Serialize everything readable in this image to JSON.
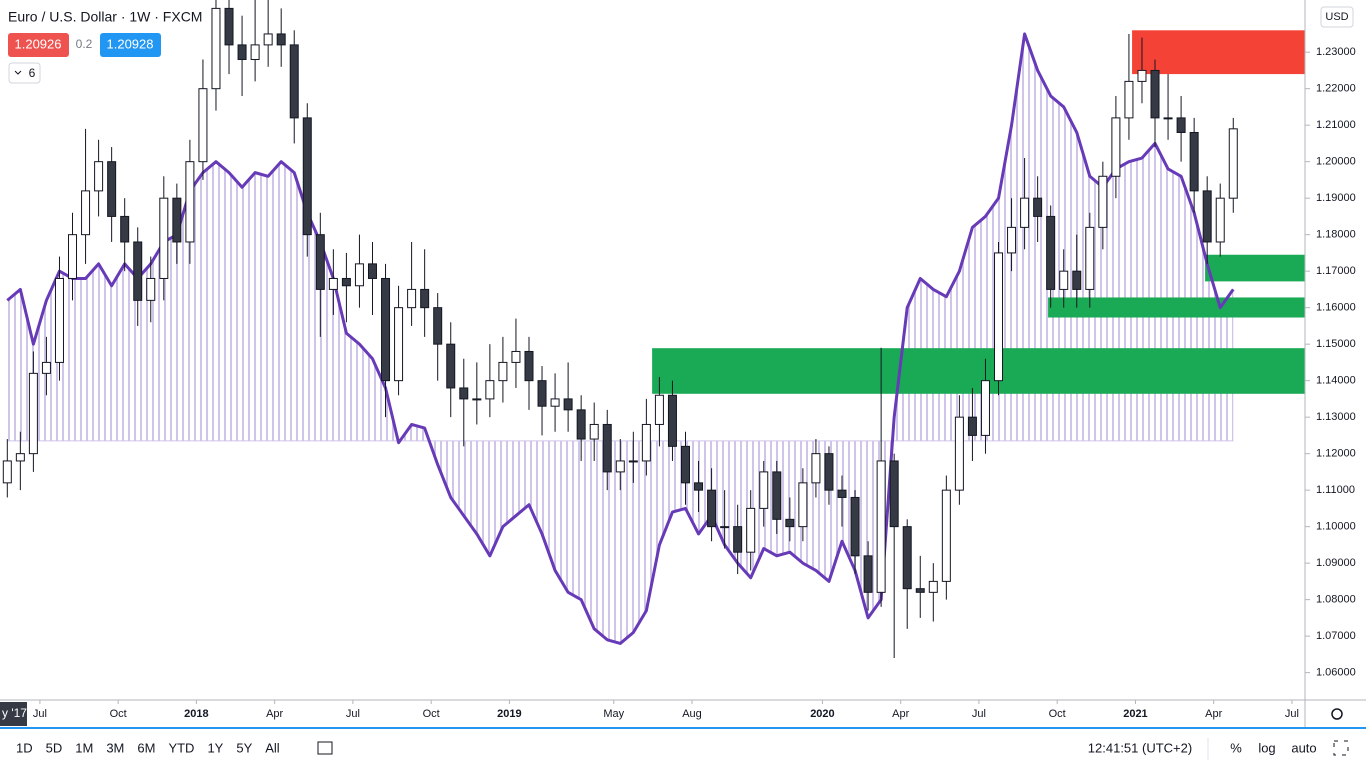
{
  "header": {
    "symbol": "Euro / U.S. Dollar · 1W · FXCM",
    "bid": "1.20926",
    "spread": "0.2",
    "ask": "1.20928",
    "indicator_count": "6"
  },
  "currency": "USD",
  "toolbar": {
    "ranges": [
      "1D",
      "5D",
      "1M",
      "3M",
      "6M",
      "YTD",
      "1Y",
      "5Y",
      "All"
    ],
    "clock": "12:41:51 (UTC+2)",
    "percent": "%",
    "log": "log",
    "auto": "auto"
  },
  "crosshair_label": "y '17",
  "chart_data": {
    "type": "candlestick",
    "xlim": [
      -1.53,
      48.5
    ],
    "xticks": [
      {
        "value": 0,
        "label": "Jul"
      },
      {
        "value": 3,
        "label": "Oct"
      },
      {
        "value": 6,
        "label": "2018"
      },
      {
        "value": 9,
        "label": "Apr"
      },
      {
        "value": 12,
        "label": "Jul"
      },
      {
        "value": 15,
        "label": "Oct"
      },
      {
        "value": 18,
        "label": "2019"
      },
      {
        "value": 22,
        "label": "May"
      },
      {
        "value": 25,
        "label": "Aug"
      },
      {
        "value": 30,
        "label": "2020"
      },
      {
        "value": 33,
        "label": "Apr"
      },
      {
        "value": 36,
        "label": "Jul"
      },
      {
        "value": 39,
        "label": "Oct"
      },
      {
        "value": 42,
        "label": "2021"
      },
      {
        "value": 45,
        "label": "Apr"
      },
      {
        "value": 48,
        "label": "Jul"
      }
    ],
    "ylim": [
      1.0525,
      1.2443
    ],
    "yticks": [
      {
        "value": 1.06,
        "label": "1.06000"
      },
      {
        "value": 1.07,
        "label": "1.07000"
      },
      {
        "value": 1.08,
        "label": "1.08000"
      },
      {
        "value": 1.09,
        "label": "1.09000"
      },
      {
        "value": 1.1,
        "label": "1.10000"
      },
      {
        "value": 1.11,
        "label": "1.11000"
      },
      {
        "value": 1.12,
        "label": "1.12000"
      },
      {
        "value": 1.13,
        "label": "1.13000"
      },
      {
        "value": 1.14,
        "label": "1.14000"
      },
      {
        "value": 1.15,
        "label": "1.15000"
      },
      {
        "value": 1.16,
        "label": "1.16000"
      },
      {
        "value": 1.17,
        "label": "1.17000"
      },
      {
        "value": 1.18,
        "label": "1.18000"
      },
      {
        "value": 1.19,
        "label": "1.19000"
      },
      {
        "value": 1.2,
        "label": "1.20000"
      },
      {
        "value": 1.21,
        "label": "1.21000"
      },
      {
        "value": 1.22,
        "label": "1.22000"
      },
      {
        "value": 1.23,
        "label": "1.23000"
      }
    ],
    "x": [
      -1.25,
      -0.75,
      -0.25,
      0.25,
      0.75,
      1.25,
      1.75,
      2.25,
      2.75,
      3.25,
      3.75,
      4.25,
      4.75,
      5.25,
      5.75,
      6.25,
      6.75,
      7.25,
      7.75,
      8.25,
      8.75,
      9.25,
      9.75,
      10.25,
      10.75,
      11.25,
      11.75,
      12.25,
      12.75,
      13.25,
      13.75,
      14.25,
      14.75,
      15.25,
      15.75,
      16.25,
      16.75,
      17.25,
      17.75,
      18.25,
      18.75,
      19.25,
      19.75,
      20.25,
      20.75,
      21.25,
      21.75,
      22.25,
      22.75,
      23.25,
      23.75,
      24.25,
      24.75,
      25.25,
      25.75,
      26.25,
      26.75,
      27.25,
      27.75,
      28.25,
      28.75,
      29.25,
      29.75,
      30.25,
      30.75,
      31.25,
      31.75,
      32.25,
      32.75,
      33.25,
      33.75,
      34.25,
      34.75,
      35.25,
      35.75,
      36.25,
      36.75,
      37.25,
      37.75,
      38.25,
      38.75,
      39.25,
      39.75,
      40.25,
      40.75,
      41.25,
      41.75,
      42.25,
      42.75,
      43.25,
      43.75,
      44.25,
      44.75,
      45.25,
      45.75
    ],
    "open": [
      1.112,
      1.118,
      1.12,
      1.142,
      1.145,
      1.168,
      1.18,
      1.192,
      1.2,
      1.185,
      1.178,
      1.162,
      1.168,
      1.19,
      1.178,
      1.2,
      1.22,
      1.242,
      1.232,
      1.228,
      1.232,
      1.235,
      1.232,
      1.212,
      1.18,
      1.165,
      1.168,
      1.166,
      1.172,
      1.168,
      1.14,
      1.16,
      1.165,
      1.16,
      1.15,
      1.138,
      1.135,
      1.135,
      1.14,
      1.145,
      1.148,
      1.14,
      1.133,
      1.135,
      1.132,
      1.124,
      1.128,
      1.115,
      1.118,
      1.118,
      1.128,
      1.136,
      1.122,
      1.112,
      1.11,
      1.1,
      1.1,
      1.093,
      1.105,
      1.115,
      1.102,
      1.1,
      1.112,
      1.12,
      1.11,
      1.108,
      1.092,
      1.082,
      1.118,
      1.1,
      1.083,
      1.082,
      1.085,
      1.11,
      1.13,
      1.125,
      1.14,
      1.175,
      1.182,
      1.19,
      1.185,
      1.165,
      1.17,
      1.165,
      1.182,
      1.196,
      1.212,
      1.222,
      1.225,
      1.212,
      1.212,
      1.208,
      1.192,
      1.178,
      1.19
    ],
    "high": [
      1.124,
      1.126,
      1.148,
      1.152,
      1.174,
      1.186,
      1.209,
      1.206,
      1.204,
      1.19,
      1.182,
      1.174,
      1.196,
      1.194,
      1.206,
      1.228,
      1.255,
      1.25,
      1.24,
      1.245,
      1.248,
      1.242,
      1.236,
      1.216,
      1.186,
      1.176,
      1.175,
      1.18,
      1.178,
      1.172,
      1.166,
      1.178,
      1.176,
      1.164,
      1.156,
      1.146,
      1.145,
      1.15,
      1.152,
      1.157,
      1.152,
      1.144,
      1.142,
      1.145,
      1.136,
      1.134,
      1.132,
      1.124,
      1.126,
      1.135,
      1.141,
      1.14,
      1.126,
      1.118,
      1.116,
      1.11,
      1.106,
      1.11,
      1.118,
      1.118,
      1.108,
      1.116,
      1.124,
      1.122,
      1.114,
      1.11,
      1.096,
      1.149,
      1.12,
      1.102,
      1.092,
      1.09,
      1.114,
      1.136,
      1.138,
      1.146,
      1.178,
      1.19,
      1.201,
      1.196,
      1.188,
      1.176,
      1.18,
      1.186,
      1.2,
      1.218,
      1.235,
      1.234,
      1.228,
      1.224,
      1.218,
      1.212,
      1.196,
      1.194,
      1.212
    ],
    "low": [
      1.108,
      1.11,
      1.115,
      1.136,
      1.14,
      1.162,
      1.172,
      1.185,
      1.178,
      1.17,
      1.155,
      1.156,
      1.162,
      1.172,
      1.172,
      1.195,
      1.214,
      1.224,
      1.218,
      1.222,
      1.226,
      1.226,
      1.205,
      1.174,
      1.152,
      1.158,
      1.156,
      1.16,
      1.158,
      1.13,
      1.136,
      1.155,
      1.152,
      1.14,
      1.13,
      1.122,
      1.128,
      1.13,
      1.134,
      1.138,
      1.132,
      1.125,
      1.126,
      1.126,
      1.118,
      1.118,
      1.11,
      1.11,
      1.112,
      1.114,
      1.122,
      1.118,
      1.106,
      1.104,
      1.096,
      1.094,
      1.087,
      1.088,
      1.1,
      1.098,
      1.096,
      1.096,
      1.108,
      1.106,
      1.1,
      1.087,
      1.077,
      1.078,
      1.064,
      1.072,
      1.075,
      1.074,
      1.08,
      1.106,
      1.118,
      1.12,
      1.136,
      1.17,
      1.176,
      1.178,
      1.16,
      1.16,
      1.16,
      1.16,
      1.176,
      1.19,
      1.206,
      1.216,
      1.204,
      1.206,
      1.2,
      1.186,
      1.172,
      1.174,
      1.186
    ],
    "close": [
      1.118,
      1.12,
      1.142,
      1.145,
      1.168,
      1.18,
      1.192,
      1.2,
      1.185,
      1.178,
      1.162,
      1.168,
      1.19,
      1.178,
      1.2,
      1.22,
      1.242,
      1.232,
      1.228,
      1.232,
      1.235,
      1.232,
      1.212,
      1.18,
      1.165,
      1.168,
      1.166,
      1.172,
      1.168,
      1.14,
      1.16,
      1.165,
      1.16,
      1.15,
      1.138,
      1.135,
      1.135,
      1.14,
      1.145,
      1.148,
      1.14,
      1.133,
      1.135,
      1.132,
      1.124,
      1.128,
      1.115,
      1.118,
      1.118,
      1.128,
      1.136,
      1.122,
      1.112,
      1.11,
      1.1,
      1.1,
      1.093,
      1.105,
      1.115,
      1.102,
      1.1,
      1.112,
      1.12,
      1.11,
      1.108,
      1.092,
      1.082,
      1.118,
      1.1,
      1.083,
      1.082,
      1.085,
      1.11,
      1.13,
      1.125,
      1.14,
      1.175,
      1.182,
      1.19,
      1.185,
      1.165,
      1.17,
      1.165,
      1.182,
      1.196,
      1.212,
      1.222,
      1.225,
      1.212,
      1.212,
      1.208,
      1.192,
      1.178,
      1.19,
      1.209
    ],
    "up_color": "#ffffff",
    "down_color": "#363a45",
    "wick_color": "#131722",
    "indicator": {
      "color": "#673ab7",
      "fill_color": "#d1c4e9",
      "baseline": 1.1235,
      "values": [
        1.162,
        1.165,
        1.15,
        1.162,
        1.17,
        1.168,
        1.168,
        1.172,
        1.166,
        1.172,
        1.168,
        1.172,
        1.178,
        1.18,
        1.192,
        1.197,
        1.2,
        1.197,
        1.193,
        1.197,
        1.196,
        1.2,
        1.197,
        1.186,
        1.178,
        1.168,
        1.153,
        1.15,
        1.146,
        1.138,
        1.123,
        1.128,
        1.127,
        1.117,
        1.108,
        1.103,
        1.098,
        1.092,
        1.1,
        1.103,
        1.106,
        1.098,
        1.088,
        1.082,
        1.08,
        1.072,
        1.069,
        1.068,
        1.071,
        1.077,
        1.095,
        1.104,
        1.105,
        1.098,
        1.103,
        1.095,
        1.09,
        1.086,
        1.094,
        1.092,
        1.093,
        1.09,
        1.088,
        1.085,
        1.096,
        1.088,
        1.075,
        1.08,
        1.13,
        1.16,
        1.168,
        1.165,
        1.163,
        1.17,
        1.182,
        1.185,
        1.19,
        1.21,
        1.235,
        1.225,
        1.218,
        1.215,
        1.208,
        1.196,
        1.193,
        1.198,
        1.2,
        1.201,
        1.205,
        1.198,
        1.196,
        1.186,
        1.172,
        1.16,
        1.165
      ]
    },
    "zones": [
      {
        "color": "#f44336",
        "from": 41.87,
        "low": 1.224,
        "high": 1.236
      },
      {
        "color": "#1aaa55",
        "from": 44.67,
        "low": 1.1672,
        "high": 1.1745
      },
      {
        "color": "#1aaa55",
        "from": 38.65,
        "low": 1.1573,
        "high": 1.1628
      },
      {
        "color": "#1aaa55",
        "from": 23.47,
        "low": 1.1364,
        "high": 1.1489
      }
    ]
  }
}
